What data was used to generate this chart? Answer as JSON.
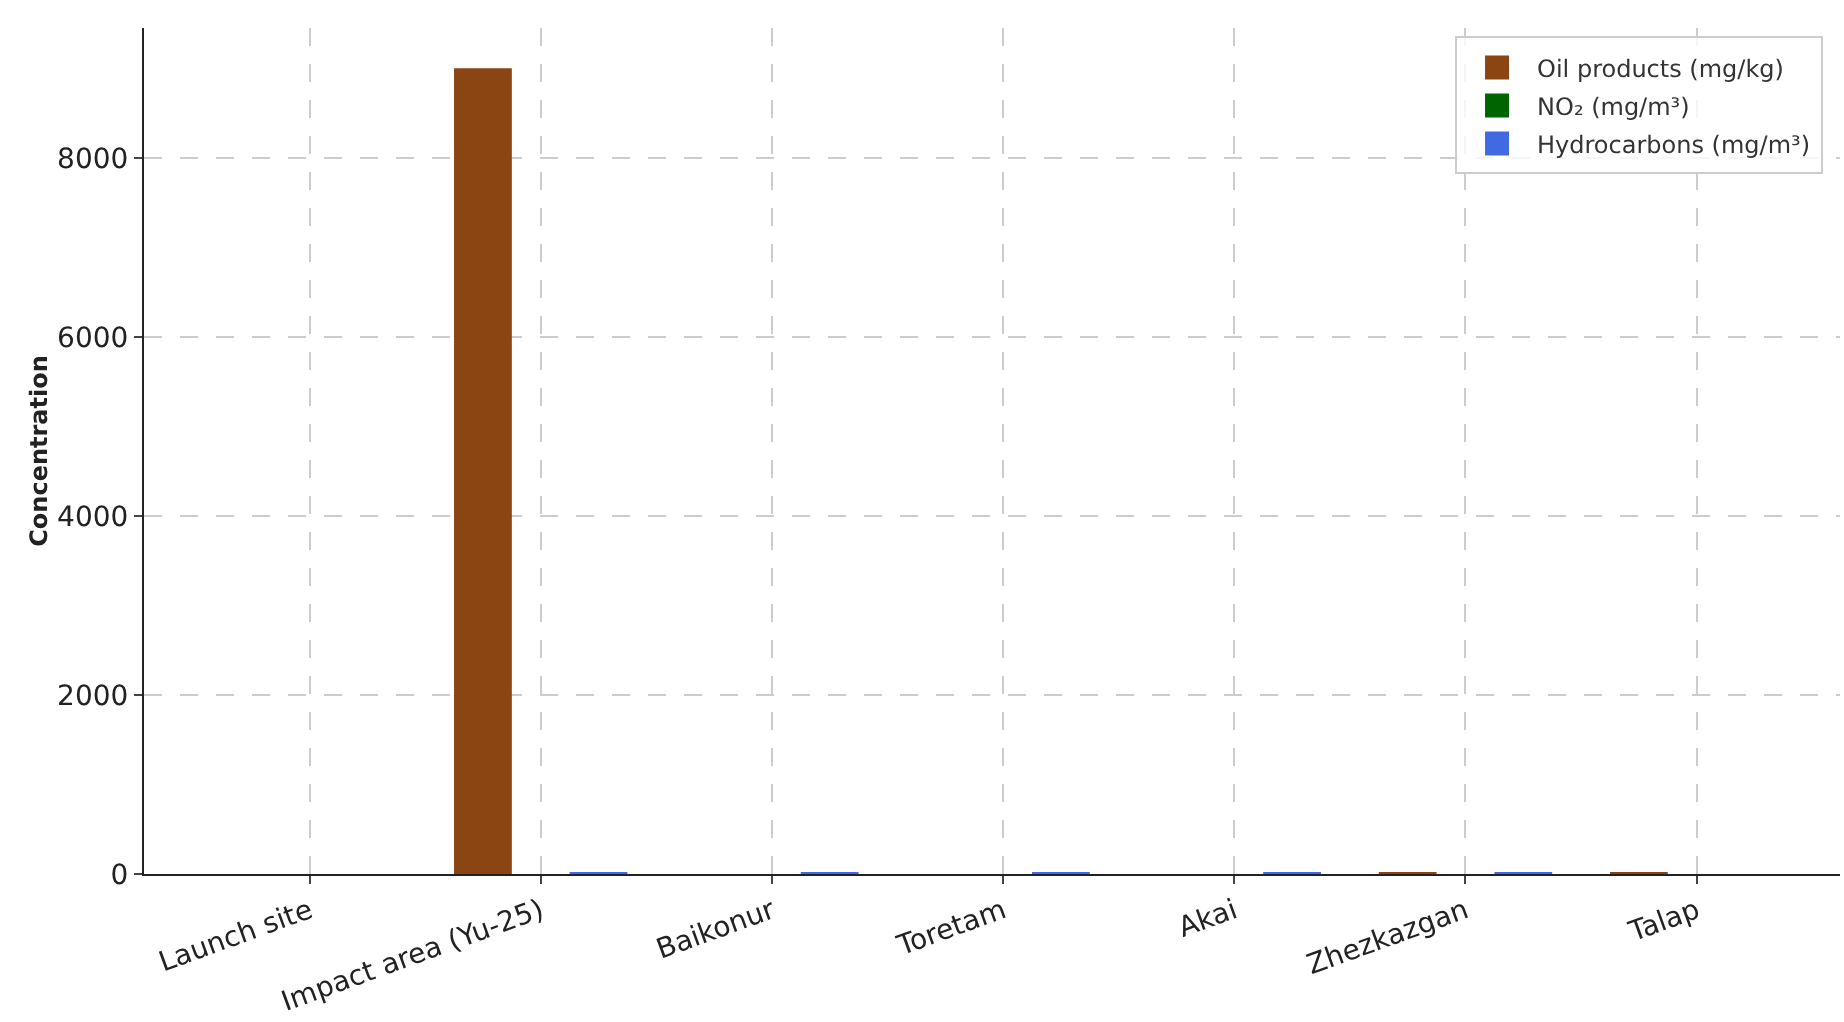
{
  "chart_data": {
    "type": "bar",
    "ylabel": "Concentration",
    "categories": [
      "Launch site",
      "Impact area (Yu-25)",
      "Baikonur",
      "Toretam",
      "Akai",
      "Zhezkazgan",
      "Talap"
    ],
    "series": [
      {
        "name": "Oil products (mg/kg)",
        "color": "#8b4513",
        "values": [
          0,
          9000,
          0,
          0,
          0,
          20,
          20
        ]
      },
      {
        "name": "NO₂ (mg/m³)",
        "color": "#006400",
        "values": [
          0,
          0,
          0,
          0,
          0,
          0,
          0
        ]
      },
      {
        "name": "Hydrocarbons (mg/m³)",
        "color": "#4169e1",
        "values": [
          0,
          20,
          20,
          20,
          20,
          20,
          0
        ]
      }
    ],
    "ylim": [
      0,
      9450
    ],
    "yticks": [
      0,
      2000,
      4000,
      6000,
      8000
    ],
    "grid": true,
    "legend": "top right"
  }
}
